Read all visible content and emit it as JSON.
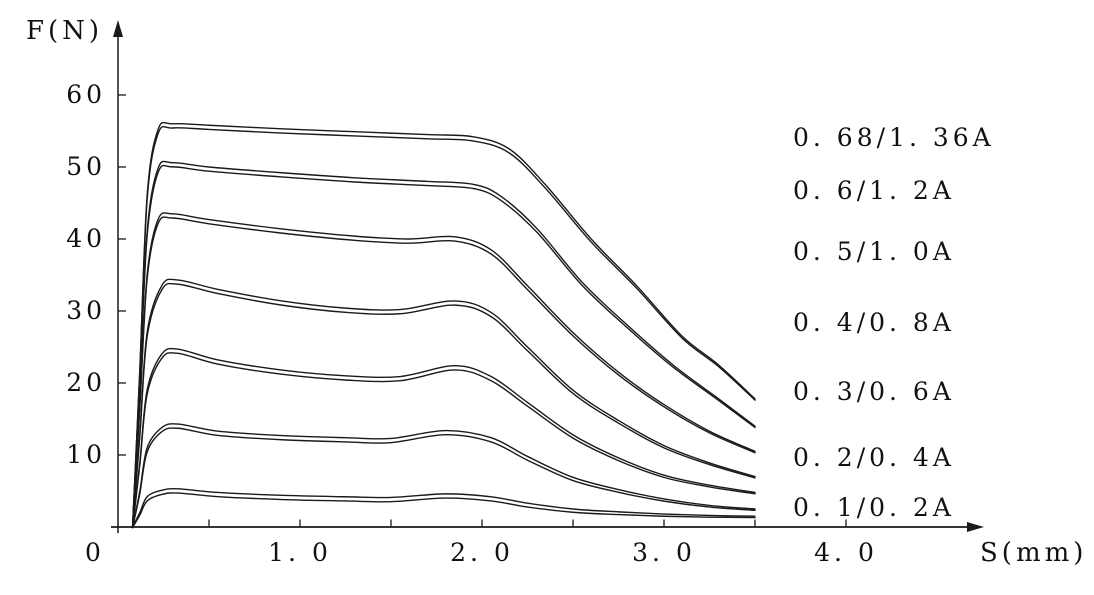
{
  "figure": {
    "background": "#ffffff",
    "line_color": "#1a1a1a"
  },
  "chart_data": {
    "type": "line",
    "title": "",
    "xlabel": "S(mm)",
    "ylabel": "F(N)",
    "xlim": [
      0,
      4.3
    ],
    "ylim": [
      0,
      65
    ],
    "grid": false,
    "legend_position": "right-inline",
    "x_ticks": [
      {
        "v": 0,
        "label": "0"
      },
      {
        "v": 1,
        "label": "1. 0"
      },
      {
        "v": 2,
        "label": "2. 0"
      },
      {
        "v": 3,
        "label": "3. 0"
      },
      {
        "v": 4,
        "label": "4. 0"
      }
    ],
    "x_minor_ticks": [
      0.5,
      1,
      1.5,
      2,
      2.5,
      3,
      3.5,
      4
    ],
    "y_ticks": [
      {
        "v": 10,
        "label": "10"
      },
      {
        "v": 20,
        "label": "20"
      },
      {
        "v": 30,
        "label": "30"
      },
      {
        "v": 40,
        "label": "40"
      },
      {
        "v": 50,
        "label": "50"
      },
      {
        "v": 60,
        "label": "60"
      }
    ],
    "series": [
      {
        "name": "0. 68/1. 36A",
        "label_y": 54,
        "double_line": true,
        "points": [
          [
            0.08,
            0
          ],
          [
            0.12,
            22
          ],
          [
            0.16,
            46
          ],
          [
            0.22,
            55.2
          ],
          [
            0.3,
            56
          ],
          [
            0.5,
            55.8
          ],
          [
            0.9,
            55.3
          ],
          [
            1.3,
            54.9
          ],
          [
            1.7,
            54.5
          ],
          [
            1.95,
            54.2
          ],
          [
            2.15,
            52.5
          ],
          [
            2.35,
            47.5
          ],
          [
            2.6,
            40
          ],
          [
            2.85,
            33.5
          ],
          [
            3.1,
            26.5
          ],
          [
            3.3,
            22.5
          ],
          [
            3.5,
            17.8
          ]
        ]
      },
      {
        "name": "0. 6/1. 2A",
        "label_y": 46.6,
        "double_line": true,
        "points": [
          [
            0.08,
            0
          ],
          [
            0.12,
            20
          ],
          [
            0.16,
            41
          ],
          [
            0.22,
            49.8
          ],
          [
            0.3,
            50.6
          ],
          [
            0.5,
            50
          ],
          [
            0.9,
            49.2
          ],
          [
            1.3,
            48.5
          ],
          [
            1.7,
            48
          ],
          [
            1.95,
            47.6
          ],
          [
            2.1,
            46
          ],
          [
            2.3,
            41.5
          ],
          [
            2.55,
            34
          ],
          [
            2.8,
            28
          ],
          [
            3.05,
            22.5
          ],
          [
            3.3,
            17.8
          ],
          [
            3.5,
            14
          ]
        ]
      },
      {
        "name": "0. 5/1. 0A",
        "label_y": 38.2,
        "double_line": true,
        "points": [
          [
            0.08,
            0
          ],
          [
            0.12,
            17
          ],
          [
            0.16,
            35
          ],
          [
            0.22,
            42.7
          ],
          [
            0.3,
            43.5
          ],
          [
            0.5,
            42.7
          ],
          [
            0.9,
            41.4
          ],
          [
            1.3,
            40.4
          ],
          [
            1.6,
            40
          ],
          [
            1.85,
            40.3
          ],
          [
            2.05,
            38.5
          ],
          [
            2.25,
            33.5
          ],
          [
            2.5,
            27
          ],
          [
            2.75,
            21.5
          ],
          [
            3.0,
            17
          ],
          [
            3.25,
            13.3
          ],
          [
            3.5,
            10.5
          ]
        ]
      },
      {
        "name": "0. 4/0. 8A",
        "label_y": 28.4,
        "double_line": true,
        "points": [
          [
            0.08,
            0
          ],
          [
            0.12,
            13
          ],
          [
            0.16,
            27
          ],
          [
            0.24,
            33.5
          ],
          [
            0.33,
            34.3
          ],
          [
            0.55,
            33
          ],
          [
            0.9,
            31.4
          ],
          [
            1.25,
            30.4
          ],
          [
            1.55,
            30.2
          ],
          [
            1.85,
            31.4
          ],
          [
            2.05,
            29.8
          ],
          [
            2.25,
            25
          ],
          [
            2.5,
            19
          ],
          [
            2.75,
            14.8
          ],
          [
            3.0,
            11.3
          ],
          [
            3.25,
            8.9
          ],
          [
            3.5,
            7
          ]
        ]
      },
      {
        "name": "0. 3/0. 6A",
        "label_y": 18.8,
        "double_line": true,
        "points": [
          [
            0.08,
            0
          ],
          [
            0.12,
            9
          ],
          [
            0.16,
            19
          ],
          [
            0.24,
            24
          ],
          [
            0.33,
            24.7
          ],
          [
            0.55,
            23.2
          ],
          [
            0.9,
            21.8
          ],
          [
            1.25,
            21
          ],
          [
            1.55,
            20.9
          ],
          [
            1.85,
            22.4
          ],
          [
            2.05,
            20.9
          ],
          [
            2.25,
            17.3
          ],
          [
            2.5,
            12.8
          ],
          [
            2.75,
            9.6
          ],
          [
            3.0,
            7.2
          ],
          [
            3.25,
            5.8
          ],
          [
            3.5,
            4.8
          ]
        ]
      },
      {
        "name": "0. 2/0. 4A",
        "label_y": 9.6,
        "double_line": true,
        "points": [
          [
            0.08,
            0
          ],
          [
            0.12,
            5
          ],
          [
            0.16,
            11
          ],
          [
            0.24,
            13.8
          ],
          [
            0.33,
            14.3
          ],
          [
            0.55,
            13.3
          ],
          [
            0.9,
            12.7
          ],
          [
            1.25,
            12.4
          ],
          [
            1.5,
            12.3
          ],
          [
            1.8,
            13.4
          ],
          [
            2.05,
            12.4
          ],
          [
            2.25,
            9.8
          ],
          [
            2.5,
            6.9
          ],
          [
            2.75,
            5.2
          ],
          [
            3.0,
            3.9
          ],
          [
            3.25,
            3
          ],
          [
            3.5,
            2.5
          ]
        ]
      },
      {
        "name": "0. 1/0. 2A",
        "label_y": 2.6,
        "double_line": true,
        "points": [
          [
            0.08,
            0
          ],
          [
            0.12,
            2
          ],
          [
            0.16,
            4.2
          ],
          [
            0.24,
            5.1
          ],
          [
            0.33,
            5.3
          ],
          [
            0.55,
            4.8
          ],
          [
            0.9,
            4.4
          ],
          [
            1.25,
            4.2
          ],
          [
            1.5,
            4.1
          ],
          [
            1.8,
            4.6
          ],
          [
            2.05,
            4.2
          ],
          [
            2.25,
            3.3
          ],
          [
            2.5,
            2.5
          ],
          [
            2.75,
            2.1
          ],
          [
            3.0,
            1.8
          ],
          [
            3.25,
            1.6
          ],
          [
            3.5,
            1.5
          ]
        ]
      }
    ]
  }
}
